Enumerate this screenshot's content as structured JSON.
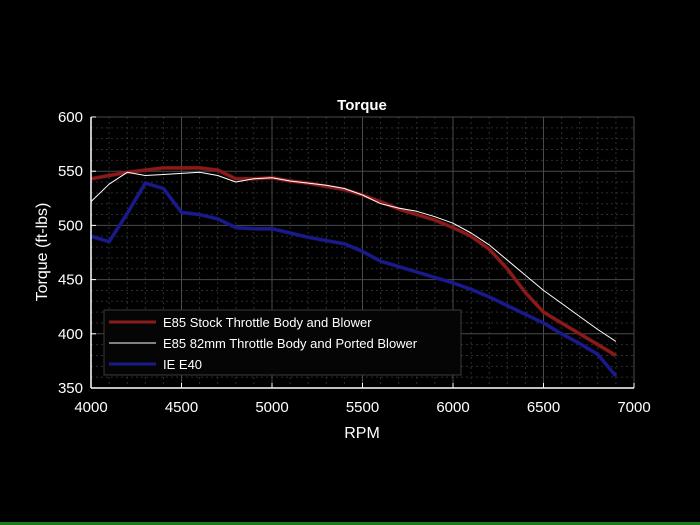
{
  "chart_data": {
    "type": "line",
    "title": "Torque",
    "xlabel": "RPM",
    "ylabel": "Torque (ft-lbs)",
    "xlim": [
      4000,
      7000
    ],
    "ylim": [
      350,
      600
    ],
    "xticks": [
      4000,
      4500,
      5000,
      5500,
      6000,
      6500,
      7000
    ],
    "yticks": [
      350,
      400,
      450,
      500,
      550,
      600
    ],
    "grid": true,
    "minor_grid": true,
    "legend_position": "lower-left",
    "x": [
      4000,
      4100,
      4200,
      4300,
      4400,
      4500,
      4600,
      4700,
      4800,
      4900,
      5000,
      5100,
      5200,
      5300,
      5400,
      5500,
      5600,
      5700,
      5800,
      5900,
      6000,
      6100,
      6200,
      6300,
      6400,
      6500,
      6600,
      6700,
      6800,
      6900
    ],
    "series": [
      {
        "name": "E85 Stock Throttle Body and Blower",
        "color": "#8b1a1a",
        "width": 3,
        "values": [
          543,
          546,
          549,
          551,
          553,
          553,
          553,
          551,
          543,
          543,
          544,
          541,
          539,
          536,
          533,
          528,
          522,
          515,
          510,
          505,
          498,
          490,
          478,
          460,
          438,
          420,
          410,
          400,
          390,
          380
        ]
      },
      {
        "name": "E85 82mm Throttle Body and Ported Blower",
        "color": "#ffffff",
        "width": 1,
        "values": [
          522,
          538,
          549,
          546,
          547,
          548,
          549,
          546,
          540,
          543,
          544,
          541,
          539,
          537,
          534,
          528,
          520,
          516,
          513,
          508,
          502,
          493,
          482,
          468,
          454,
          440,
          428,
          416,
          404,
          393
        ]
      },
      {
        "name": "IE E40",
        "color": "#1a1a8c",
        "width": 3,
        "values": [
          490,
          485,
          511,
          539,
          534,
          512,
          510,
          506,
          498,
          497,
          497,
          493,
          489,
          486,
          483,
          476,
          467,
          462,
          457,
          452,
          447,
          441,
          434,
          426,
          418,
          410,
          400,
          391,
          381,
          361
        ]
      }
    ]
  },
  "colors": {
    "background": "#000000",
    "axes": "#ffffff",
    "major_grid": "#4a4a4a",
    "minor_grid": "#2e2e2e",
    "legend_bg": "#050505",
    "legend_border": "#3a3a3a",
    "bottom_bar": "#1f7a1f"
  }
}
